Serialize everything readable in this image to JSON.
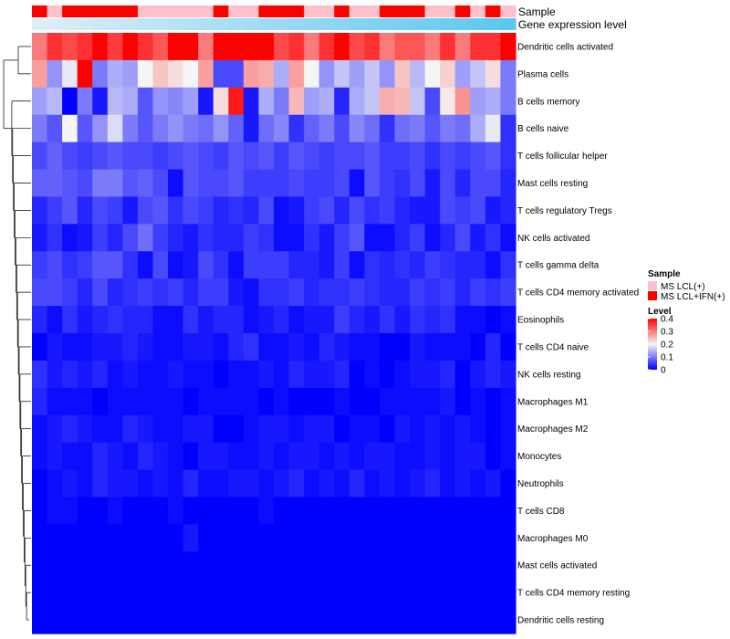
{
  "chart_data": {
    "type": "heatmap",
    "annotations": {
      "sample_label": "Sample",
      "gene_label": "Gene expression level"
    },
    "rows": [
      "Dendritic cells activated",
      "Plasma cells",
      "B cells memory",
      "B cells naive",
      "T cells follicular helper",
      "Mast cells resting",
      "T cells regulatory  Tregs",
      "NK cells activated",
      "T cells gamma delta",
      "T cells CD4 memory activated",
      "Eosinophils",
      "T cells CD4 naive",
      "NK cells resting",
      "Macrophages M1",
      "Macrophages M2",
      "Monocytes",
      "Neutrophils",
      "T cells CD8",
      "Macrophages M0",
      "Mast cells activated",
      "T cells CD4 memory resting",
      "Dendritic cells resting"
    ],
    "sample_groups": [
      1,
      0,
      1,
      1,
      1,
      1,
      1,
      0,
      0,
      0,
      0,
      0,
      1,
      0,
      0,
      1,
      1,
      1,
      0,
      0,
      1,
      0,
      0,
      1,
      1,
      1,
      0,
      0,
      1,
      0,
      1,
      0
    ],
    "values": [
      [
        0.3,
        0.36,
        0.34,
        0.36,
        0.4,
        0.35,
        0.4,
        0.36,
        0.33,
        0.4,
        0.4,
        0.3,
        0.4,
        0.4,
        0.4,
        0.4,
        0.34,
        0.36,
        0.3,
        0.36,
        0.4,
        0.34,
        0.36,
        0.3,
        0.33,
        0.33,
        0.3,
        0.36,
        0.3,
        0.36,
        0.36,
        0.4
      ],
      [
        0.27,
        0.12,
        0.19,
        0.4,
        0.1,
        0.14,
        0.13,
        0.2,
        0.24,
        0.22,
        0.2,
        0.27,
        0.06,
        0.06,
        0.27,
        0.26,
        0.14,
        0.27,
        0.2,
        0.12,
        0.16,
        0.13,
        0.16,
        0.12,
        0.24,
        0.15,
        0.2,
        0.23,
        0.13,
        0.16,
        0.22,
        0.1
      ],
      [
        0.13,
        0.15,
        0.0,
        0.1,
        0.02,
        0.15,
        0.14,
        0.07,
        0.12,
        0.11,
        0.13,
        0.02,
        0.22,
        0.38,
        0.02,
        0.14,
        0.1,
        0.25,
        0.13,
        0.14,
        0.03,
        0.14,
        0.16,
        0.26,
        0.25,
        0.16,
        0.06,
        0.21,
        0.28,
        0.13,
        0.14,
        0.1
      ],
      [
        0.1,
        0.07,
        0.2,
        0.07,
        0.12,
        0.18,
        0.1,
        0.07,
        0.1,
        0.12,
        0.1,
        0.09,
        0.12,
        0.08,
        0.02,
        0.09,
        0.11,
        0.04,
        0.08,
        0.1,
        0.06,
        0.11,
        0.09,
        0.04,
        0.09,
        0.1,
        0.07,
        0.1,
        0.09,
        0.14,
        0.19,
        0.04
      ],
      [
        0.06,
        0.08,
        0.06,
        0.05,
        0.06,
        0.07,
        0.06,
        0.06,
        0.05,
        0.06,
        0.07,
        0.06,
        0.05,
        0.07,
        0.06,
        0.07,
        0.05,
        0.07,
        0.06,
        0.05,
        0.06,
        0.06,
        0.07,
        0.05,
        0.05,
        0.06,
        0.04,
        0.06,
        0.05,
        0.06,
        0.07,
        0.04
      ],
      [
        0.08,
        0.08,
        0.07,
        0.06,
        0.1,
        0.1,
        0.07,
        0.08,
        0.06,
        0.01,
        0.07,
        0.06,
        0.06,
        0.07,
        0.05,
        0.05,
        0.05,
        0.06,
        0.05,
        0.05,
        0.06,
        0.01,
        0.07,
        0.05,
        0.04,
        0.06,
        0.02,
        0.06,
        0.03,
        0.06,
        0.06,
        0.03
      ],
      [
        0.03,
        0.05,
        0.07,
        0.03,
        0.06,
        0.05,
        0.02,
        0.06,
        0.07,
        0.04,
        0.06,
        0.05,
        0.03,
        0.04,
        0.03,
        0.06,
        0.01,
        0.02,
        0.05,
        0.06,
        0.03,
        0.06,
        0.04,
        0.05,
        0.03,
        0.02,
        0.02,
        0.06,
        0.05,
        0.06,
        0.02,
        0.03
      ],
      [
        0.02,
        0.04,
        0.01,
        0.02,
        0.05,
        0.03,
        0.06,
        0.09,
        0.05,
        0.03,
        0.02,
        0.04,
        0.03,
        0.03,
        0.05,
        0.04,
        0.01,
        0.01,
        0.04,
        0.02,
        0.05,
        0.07,
        0.01,
        0.01,
        0.03,
        0.05,
        0.01,
        0.03,
        0.06,
        0.02,
        0.04,
        0.01
      ],
      [
        0.05,
        0.06,
        0.04,
        0.05,
        0.07,
        0.07,
        0.04,
        0.01,
        0.06,
        0.01,
        0.02,
        0.06,
        0.04,
        0.01,
        0.05,
        0.05,
        0.05,
        0.03,
        0.03,
        0.02,
        0.05,
        0.01,
        0.04,
        0.03,
        0.04,
        0.03,
        0.05,
        0.04,
        0.03,
        0.03,
        0.01,
        0.04
      ],
      [
        0.06,
        0.06,
        0.05,
        0.03,
        0.06,
        0.03,
        0.04,
        0.05,
        0.04,
        0.05,
        0.03,
        0.05,
        0.05,
        0.02,
        0.01,
        0.04,
        0.04,
        0.05,
        0.03,
        0.04,
        0.04,
        0.05,
        0.04,
        0.03,
        0.03,
        0.05,
        0.04,
        0.05,
        0.03,
        0.05,
        0.04,
        0.05
      ],
      [
        0.03,
        0.01,
        0.04,
        0.02,
        0.03,
        0.04,
        0.03,
        0.03,
        0.01,
        0.01,
        0.04,
        0.02,
        0.03,
        0.03,
        0.01,
        0.02,
        0.03,
        0.01,
        0.02,
        0.02,
        0.05,
        0.03,
        0.02,
        0.04,
        0.02,
        0.04,
        0.03,
        0.04,
        0.01,
        0.01,
        0.0,
        0.01
      ],
      [
        0.0,
        0.02,
        0.01,
        0.01,
        0.02,
        0.02,
        0.03,
        0.02,
        0.01,
        0.01,
        0.02,
        0.02,
        0.01,
        0.03,
        0.04,
        0.01,
        0.01,
        0.02,
        0.01,
        0.03,
        0.02,
        0.01,
        0.01,
        0.0,
        0.0,
        0.02,
        0.01,
        0.01,
        0.01,
        0.0,
        0.03,
        0.0
      ],
      [
        0.04,
        0.02,
        0.03,
        0.02,
        0.03,
        0.01,
        0.02,
        0.01,
        0.01,
        0.02,
        0.01,
        0.01,
        0.0,
        0.01,
        0.01,
        0.02,
        0.01,
        0.03,
        0.02,
        0.02,
        0.03,
        0.0,
        0.01,
        0.0,
        0.01,
        0.02,
        0.02,
        0.03,
        0.0,
        0.02,
        0.03,
        0.02
      ],
      [
        0.03,
        0.01,
        0.01,
        0.01,
        0.0,
        0.01,
        0.01,
        0.01,
        0.01,
        0.01,
        0.0,
        0.01,
        0.01,
        0.01,
        0.01,
        0.0,
        0.01,
        0.0,
        0.0,
        0.0,
        0.01,
        0.0,
        0.0,
        0.01,
        0.01,
        0.01,
        0.01,
        0.02,
        0.0,
        0.01,
        0.0,
        0.01
      ],
      [
        0.01,
        0.02,
        0.03,
        0.02,
        0.01,
        0.01,
        0.03,
        0.02,
        0.01,
        0.01,
        0.02,
        0.02,
        0.0,
        0.0,
        0.01,
        0.02,
        0.02,
        0.01,
        0.02,
        0.02,
        0.0,
        0.01,
        0.01,
        0.0,
        0.02,
        0.01,
        0.02,
        0.01,
        0.02,
        0.01,
        0.0,
        0.01
      ],
      [
        0.01,
        0.02,
        0.01,
        0.01,
        0.03,
        0.02,
        0.01,
        0.03,
        0.02,
        0.01,
        0.0,
        0.02,
        0.02,
        0.01,
        0.01,
        0.02,
        0.01,
        0.02,
        0.02,
        0.01,
        0.02,
        0.01,
        0.02,
        0.02,
        0.01,
        0.01,
        0.02,
        0.01,
        0.02,
        0.02,
        0.0,
        0.01
      ],
      [
        0.0,
        0.01,
        0.02,
        0.01,
        0.03,
        0.02,
        0.02,
        0.01,
        0.02,
        0.01,
        0.03,
        0.01,
        0.01,
        0.02,
        0.02,
        0.01,
        0.02,
        0.03,
        0.01,
        0.02,
        0.01,
        0.03,
        0.01,
        0.02,
        0.01,
        0.02,
        0.03,
        0.01,
        0.02,
        0.01,
        0.02,
        0.0
      ],
      [
        0.0,
        0.01,
        0.01,
        0.0,
        0.0,
        0.01,
        0.0,
        0.0,
        0.0,
        0.01,
        0.0,
        0.0,
        0.0,
        0.0,
        0.0,
        0.01,
        0.0,
        0.0,
        0.0,
        0.0,
        0.0,
        0.0,
        0.0,
        0.0,
        0.0,
        0.0,
        0.0,
        0.0,
        0.0,
        0.0,
        0.0,
        0.0
      ],
      [
        0.0,
        0.0,
        0.0,
        0.0,
        0.0,
        0.0,
        0.0,
        0.0,
        0.0,
        0.0,
        0.02,
        0.0,
        0.0,
        0.0,
        0.0,
        0.0,
        0.0,
        0.0,
        0.0,
        0.0,
        0.0,
        0.0,
        0.0,
        0.0,
        0.0,
        0.0,
        0.0,
        0.0,
        0.0,
        0.0,
        0.0,
        0.0
      ],
      [
        0.0,
        0.0,
        0.0,
        0.0,
        0.0,
        0.0,
        0.0,
        0.0,
        0.0,
        0.0,
        0.0,
        0.0,
        0.0,
        0.0,
        0.0,
        0.0,
        0.0,
        0.0,
        0.0,
        0.0,
        0.0,
        0.0,
        0.0,
        0.0,
        0.0,
        0.0,
        0.0,
        0.0,
        0.0,
        0.0,
        0.0,
        0.0
      ],
      [
        0.0,
        0.0,
        0.0,
        0.0,
        0.0,
        0.0,
        0.0,
        0.0,
        0.0,
        0.0,
        0.0,
        0.0,
        0.0,
        0.0,
        0.0,
        0.0,
        0.0,
        0.0,
        0.0,
        0.0,
        0.0,
        0.0,
        0.0,
        0.0,
        0.0,
        0.0,
        0.0,
        0.0,
        0.0,
        0.0,
        0.0,
        0.0
      ],
      [
        0.0,
        0.0,
        0.0,
        0.0,
        0.0,
        0.0,
        0.0,
        0.0,
        0.0,
        0.0,
        0.0,
        0.0,
        0.0,
        0.0,
        0.0,
        0.0,
        0.0,
        0.0,
        0.0,
        0.0,
        0.0,
        0.0,
        0.0,
        0.0,
        0.0,
        0.0,
        0.0,
        0.0,
        0.0,
        0.0,
        0.0,
        0.0
      ]
    ],
    "legend": {
      "sample_title": "Sample",
      "sample_entries": [
        {
          "label": "MS LCL(+)",
          "color": "#FFC0CB"
        },
        {
          "label": "MS LCL+IFN(+)",
          "color": "#FF0000"
        }
      ],
      "level_title": "Level",
      "level_ticks": [
        "0.4",
        "0.3",
        "0.2",
        "0.1",
        "0"
      ],
      "level_range": [
        0,
        0.4
      ]
    },
    "colors": {
      "low": "#0000FF",
      "mid": "#F5F5F5",
      "high": "#FF0000",
      "gene_low": "#DDEEF8",
      "gene_high": "#5BC8F0"
    }
  }
}
